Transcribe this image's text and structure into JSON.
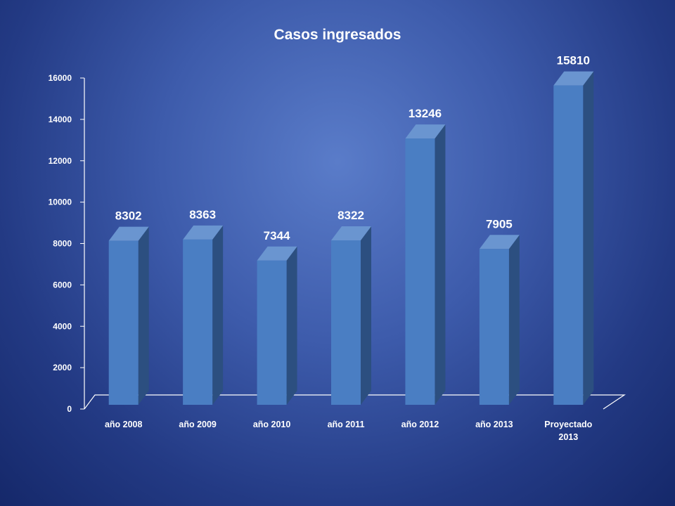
{
  "chart_data": {
    "type": "bar",
    "title": "Casos ingresados",
    "categories": [
      [
        "año 2008"
      ],
      [
        "año 2009"
      ],
      [
        "año 2010"
      ],
      [
        "año 2011"
      ],
      [
        "año 2012"
      ],
      [
        "año 2013"
      ],
      [
        "Proyectado",
        "2013"
      ]
    ],
    "values": [
      8302,
      8363,
      7344,
      8322,
      13246,
      7905,
      15810
    ],
    "data_labels": [
      "8302",
      "8363",
      "7344",
      "8322",
      "13246",
      "7905",
      "15810"
    ],
    "yticks": [
      "0",
      "2000",
      "4000",
      "6000",
      "8000",
      "10000",
      "12000",
      "14000",
      "16000"
    ],
    "ylim": [
      0,
      16000
    ],
    "xlabel": "",
    "ylabel": "",
    "grid": false,
    "legend": "none",
    "style": "3d-column",
    "colors": {
      "bar_front": "#4a7ec3",
      "bar_side": "#2c4f80",
      "bar_top": "#6a95d0",
      "axis": "#ffffff",
      "text": "#ffffff"
    }
  }
}
